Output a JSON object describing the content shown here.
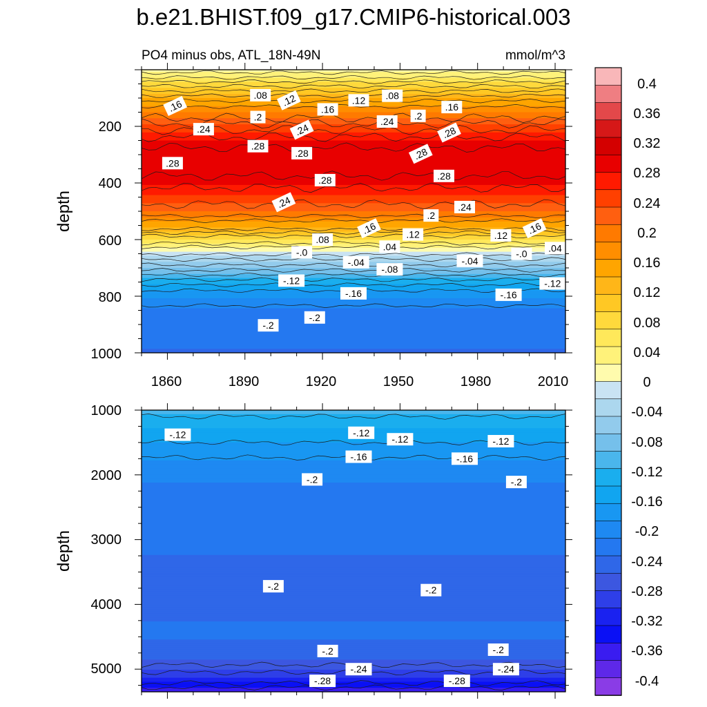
{
  "chart_data": [
    {
      "type": "contour",
      "title": "b.e21.BHIST.f09_g17.CMIP6-historical.003",
      "subtitle_left": "PO4 minus obs, ATL_18N-49N",
      "subtitle_right": "mmol/m^3",
      "xlabel": "",
      "ylabel": "depth",
      "xlim": [
        1850,
        2014
      ],
      "ylim": [
        1000,
        0
      ],
      "x_ticks": [
        "1860",
        "1890",
        "1920",
        "1950",
        "1980",
        "2010"
      ],
      "y_ticks": [
        "200",
        "400",
        "600",
        "800",
        "1000"
      ],
      "depth_profile": {
        "depth": [
          0,
          20,
          50,
          100,
          150,
          200,
          250,
          300,
          350,
          400,
          450,
          500,
          550,
          600,
          640,
          660,
          700,
          750,
          800,
          850,
          900,
          950,
          1000
        ],
        "value": [
          0.03,
          0.05,
          0.09,
          0.15,
          0.2,
          0.25,
          0.29,
          0.31,
          0.31,
          0.29,
          0.26,
          0.22,
          0.16,
          0.08,
          0.02,
          -0.01,
          -0.05,
          -0.11,
          -0.16,
          -0.19,
          -0.2,
          -0.2,
          -0.21
        ]
      },
      "contour_labels": [
        {
          "text": ".08",
          "year": 1896,
          "depth": 90
        },
        {
          "text": ".12",
          "year": 1907,
          "depth": 108
        },
        {
          "text": ".12",
          "year": 1934,
          "depth": 108
        },
        {
          "text": ".08",
          "year": 1947,
          "depth": 92
        },
        {
          "text": ".16",
          "year": 1863,
          "depth": 128
        },
        {
          "text": ".16",
          "year": 1922,
          "depth": 140
        },
        {
          "text": ".16",
          "year": 1970,
          "depth": 132
        },
        {
          "text": ".2",
          "year": 1895,
          "depth": 167
        },
        {
          "text": ".2",
          "year": 1957,
          "depth": 163
        },
        {
          "text": ".24",
          "year": 1874,
          "depth": 210
        },
        {
          "text": ".24",
          "year": 1912,
          "depth": 212
        },
        {
          "text": ".24",
          "year": 1945,
          "depth": 183
        },
        {
          "text": ".28",
          "year": 1895,
          "depth": 270
        },
        {
          "text": ".28",
          "year": 1969,
          "depth": 222
        },
        {
          "text": ".28",
          "year": 1862,
          "depth": 330
        },
        {
          "text": ".28",
          "year": 1912,
          "depth": 295
        },
        {
          "text": ".28",
          "year": 1958,
          "depth": 297
        },
        {
          "text": ".28",
          "year": 1967,
          "depth": 375
        },
        {
          "text": ".28",
          "year": 1921,
          "depth": 390
        },
        {
          "text": ".24",
          "year": 1905,
          "depth": 468
        },
        {
          "text": ".2",
          "year": 1962,
          "depth": 515
        },
        {
          "text": ".24",
          "year": 1975,
          "depth": 485
        },
        {
          "text": ".16",
          "year": 1938,
          "depth": 560
        },
        {
          "text": ".12",
          "year": 1955,
          "depth": 582
        },
        {
          "text": ".12",
          "year": 1989,
          "depth": 585
        },
        {
          "text": ".16",
          "year": 2002,
          "depth": 560
        },
        {
          "text": ".08",
          "year": 1920,
          "depth": 600
        },
        {
          "text": ".04",
          "year": 1946,
          "depth": 625
        },
        {
          "text": ".04",
          "year": 2010,
          "depth": 630
        },
        {
          "text": "-.0",
          "year": 1912,
          "depth": 645
        },
        {
          "text": "-.0",
          "year": 1997,
          "depth": 650
        },
        {
          "text": "-.04",
          "year": 1933,
          "depth": 680
        },
        {
          "text": "-.04",
          "year": 1977,
          "depth": 675
        },
        {
          "text": "-.08",
          "year": 1946,
          "depth": 705
        },
        {
          "text": "-.12",
          "year": 1908,
          "depth": 745
        },
        {
          "text": "-.12",
          "year": 2009,
          "depth": 755
        },
        {
          "text": "-.16",
          "year": 1932,
          "depth": 790
        },
        {
          "text": "-.16",
          "year": 1992,
          "depth": 795
        },
        {
          "text": "-.2",
          "year": 1917,
          "depth": 875
        },
        {
          "text": "-.2",
          "year": 1899,
          "depth": 903
        }
      ]
    },
    {
      "type": "contour",
      "xlabel": "",
      "ylabel": "depth",
      "xlim": [
        1850,
        2014
      ],
      "ylim": [
        5350,
        1000
      ],
      "y_ticks": [
        "1000",
        "2000",
        "3000",
        "4000",
        "5000"
      ],
      "depth_profile": {
        "depth": [
          1000,
          1300,
          1600,
          2000,
          2500,
          3000,
          3500,
          4000,
          4500,
          4800,
          5000,
          5150,
          5250,
          5350
        ],
        "value": [
          -0.09,
          -0.12,
          -0.15,
          -0.18,
          -0.2,
          -0.205,
          -0.21,
          -0.21,
          -0.205,
          -0.22,
          -0.25,
          -0.28,
          -0.31,
          -0.34
        ]
      },
      "contour_labels": [
        {
          "text": "-.12",
          "year": 1864,
          "depth": 1380
        },
        {
          "text": "-.12",
          "year": 1935,
          "depth": 1350
        },
        {
          "text": "-.12",
          "year": 1950,
          "depth": 1450
        },
        {
          "text": "-.12",
          "year": 1989,
          "depth": 1480
        },
        {
          "text": "-.16",
          "year": 1934,
          "depth": 1720
        },
        {
          "text": "-.16",
          "year": 1975,
          "depth": 1750
        },
        {
          "text": "-.2",
          "year": 1916,
          "depth": 2070
        },
        {
          "text": "-.2",
          "year": 1995,
          "depth": 2110
        },
        {
          "text": "-.2",
          "year": 1901,
          "depth": 3720
        },
        {
          "text": "-.2",
          "year": 1962,
          "depth": 3780
        },
        {
          "text": "-.2",
          "year": 1922,
          "depth": 4720
        },
        {
          "text": "-.2",
          "year": 1988,
          "depth": 4700
        },
        {
          "text": "-.24",
          "year": 1934,
          "depth": 5000
        },
        {
          "text": "-.24",
          "year": 1991,
          "depth": 5000
        },
        {
          "text": "-.28",
          "year": 1920,
          "depth": 5180
        },
        {
          "text": "-.28",
          "year": 1972,
          "depth": 5180
        }
      ]
    }
  ],
  "colorbar": {
    "labels": [
      "0.4",
      "0.36",
      "0.32",
      "0.28",
      "0.24",
      "0.2",
      "0.16",
      "0.12",
      "0.08",
      "0.04",
      "0",
      "-0.04",
      "-0.08",
      "-0.12",
      "-0.16",
      "-0.2",
      "-0.24",
      "-0.28",
      "-0.32",
      "-0.36",
      "-0.4"
    ],
    "colors": [
      "#f9b7b9",
      "#ef7e82",
      "#e3484a",
      "#d61818",
      "#d40000",
      "#e80000",
      "#ff1a00",
      "#ff4000",
      "#ff5f10",
      "#ff7a00",
      "#ff8e00",
      "#ffa500",
      "#ffb618",
      "#ffc824",
      "#ffd93c",
      "#ffe85a",
      "#fff27a",
      "#fffbad",
      "#c9e3f3",
      "#acd7ee",
      "#92cbec",
      "#75c0eb",
      "#4ab6ec",
      "#1aaeee",
      "#11a5f0",
      "#1897f2",
      "#1e89f2",
      "#2478f0",
      "#2f67e8",
      "#3c57e0",
      "#2e3fe8",
      "#1a22f0",
      "#0a10f5",
      "#3a1cf0",
      "#5e28e8",
      "#8a3ce6"
    ]
  }
}
